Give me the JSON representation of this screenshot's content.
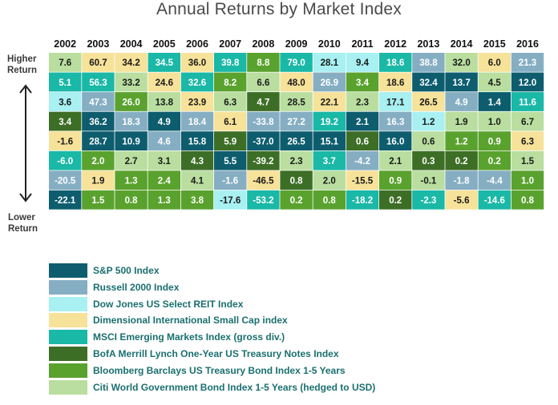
{
  "title": "Annual Returns by Market Index",
  "side_labels": {
    "high": [
      "Higher",
      "Return"
    ],
    "low": [
      "Lower",
      "Return"
    ]
  },
  "indices": [
    {
      "code": "SP",
      "name": "S&P 500 Index",
      "color": "#0d5d6e",
      "text": "#ffffff"
    },
    {
      "code": "RU",
      "name": "Russell 2000 Index",
      "color": "#86aec3",
      "text": "#ffffff"
    },
    {
      "code": "DJ",
      "name": "Dow Jones US Select REIT Index",
      "color": "#a8f0f2",
      "text": "#1a1a1a"
    },
    {
      "code": "DI",
      "name": "Dimensional International Small Cap index",
      "color": "#f7e29a",
      "text": "#1a1a1a"
    },
    {
      "code": "MS",
      "name": "MSCI Emerging Markets Index (gross div.)",
      "color": "#1ab8a6",
      "text": "#ffffff"
    },
    {
      "code": "BM",
      "name": "BofA Merrill Lynch One-Year US Treasury Notes Index",
      "color": "#3d6e26",
      "text": "#ffffff"
    },
    {
      "code": "BB",
      "name": "Bloomberg Barclays US Treasury Bond Index 1-5 Years",
      "color": "#5aa22e",
      "text": "#ffffff"
    },
    {
      "code": "CW",
      "name": "Citi World Government Bond Index 1-5 Years (hedged to USD)",
      "color": "#b9dea0",
      "text": "#1a1a1a"
    }
  ],
  "chart_data": {
    "type": "table",
    "title": "Annual Returns by Market Index",
    "years": [
      "2002",
      "2003",
      "2004",
      "2005",
      "2006",
      "2007",
      "2008",
      "2009",
      "2010",
      "2011",
      "2012",
      "2013",
      "2014",
      "2015",
      "2016"
    ],
    "columns": [
      [
        [
          "CW",
          "7.6"
        ],
        [
          "MS",
          "5.1"
        ],
        [
          "DJ",
          "3.6"
        ],
        [
          "BM",
          "3.4"
        ],
        [
          "DI",
          "-1.6"
        ],
        [
          "MS",
          "-6.0"
        ],
        [
          "RU",
          "-20.5"
        ],
        [
          "SP",
          "-22.1"
        ]
      ],
      [
        [
          "DI",
          "60.7"
        ],
        [
          "MS",
          "56.3"
        ],
        [
          "RU",
          "47.3"
        ],
        [
          "SP",
          "36.2"
        ],
        [
          "SP",
          "28.7"
        ],
        [
          "BB",
          "2.0"
        ],
        [
          "DI",
          "1.9"
        ],
        [
          "BB",
          "1.5"
        ]
      ],
      [
        [
          "DI",
          "34.2"
        ],
        [
          "CW",
          "33.2"
        ],
        [
          "BB",
          "26.0"
        ],
        [
          "RU",
          "18.3"
        ],
        [
          "SP",
          "10.9"
        ],
        [
          "CW",
          "2.7"
        ],
        [
          "BB",
          "1.3"
        ],
        [
          "BB",
          "0.8"
        ]
      ],
      [
        [
          "MS",
          "34.5"
        ],
        [
          "DI",
          "24.6"
        ],
        [
          "CW",
          "13.8"
        ],
        [
          "SP",
          "4.9"
        ],
        [
          "RU",
          "4.6"
        ],
        [
          "CW",
          "3.1"
        ],
        [
          "BB",
          "2.4"
        ],
        [
          "BB",
          "1.3"
        ]
      ],
      [
        [
          "DI",
          "36.0"
        ],
        [
          "MS",
          "32.6"
        ],
        [
          "DI",
          "23.9"
        ],
        [
          "RU",
          "18.4"
        ],
        [
          "SP",
          "15.8"
        ],
        [
          "BM",
          "4.3"
        ],
        [
          "CW",
          "4.1"
        ],
        [
          "BB",
          "3.8"
        ]
      ],
      [
        [
          "MS",
          "39.8"
        ],
        [
          "BB",
          "8.2"
        ],
        [
          "CW",
          "6.3"
        ],
        [
          "DI",
          "6.1"
        ],
        [
          "BM",
          "5.9"
        ],
        [
          "SP",
          "5.5"
        ],
        [
          "RU",
          "-1.6"
        ],
        [
          "DJ",
          "-17.6"
        ]
      ],
      [
        [
          "BB",
          "8.8"
        ],
        [
          "CW",
          "6.6"
        ],
        [
          "BM",
          "4.7"
        ],
        [
          "RU",
          "-33.8"
        ],
        [
          "SP",
          "-37.0"
        ],
        [
          "BM",
          "-39.2"
        ],
        [
          "DI",
          "-46.5"
        ],
        [
          "MS",
          "-53.2"
        ]
      ],
      [
        [
          "MS",
          "79.0"
        ],
        [
          "DI",
          "48.0"
        ],
        [
          "CW",
          "28.5"
        ],
        [
          "RU",
          "27.2"
        ],
        [
          "SP",
          "26.5"
        ],
        [
          "CW",
          "2.3"
        ],
        [
          "BM",
          "0.8"
        ],
        [
          "BB",
          "0.2"
        ]
      ],
      [
        [
          "DJ",
          "28.1"
        ],
        [
          "RU",
          "26.9"
        ],
        [
          "DI",
          "22.1"
        ],
        [
          "MS",
          "19.2"
        ],
        [
          "SP",
          "15.1"
        ],
        [
          "MS",
          "3.7"
        ],
        [
          "CW",
          "2.0"
        ],
        [
          "BB",
          "0.8"
        ]
      ],
      [
        [
          "DJ",
          "9.4"
        ],
        [
          "BB",
          "3.4"
        ],
        [
          "CW",
          "2.3"
        ],
        [
          "SP",
          "2.1"
        ],
        [
          "BM",
          "0.6"
        ],
        [
          "RU",
          "-4.2"
        ],
        [
          "DI",
          "-15.5"
        ],
        [
          "MS",
          "-18.2"
        ]
      ],
      [
        [
          "MS",
          "18.6"
        ],
        [
          "DI",
          "18.6"
        ],
        [
          "DJ",
          "17.1"
        ],
        [
          "RU",
          "16.3"
        ],
        [
          "SP",
          "16.0"
        ],
        [
          "CW",
          "2.1"
        ],
        [
          "BB",
          "0.9"
        ],
        [
          "BM",
          "0.2"
        ]
      ],
      [
        [
          "RU",
          "38.8"
        ],
        [
          "SP",
          "32.4"
        ],
        [
          "DI",
          "26.5"
        ],
        [
          "DJ",
          "1.2"
        ],
        [
          "CW",
          "0.6"
        ],
        [
          "BM",
          "0.3"
        ],
        [
          "CW",
          "-0.1"
        ],
        [
          "MS",
          "-2.3"
        ]
      ],
      [
        [
          "CW",
          "32.0"
        ],
        [
          "SP",
          "13.7"
        ],
        [
          "RU",
          "4.9"
        ],
        [
          "CW",
          "1.9"
        ],
        [
          "BB",
          "1.2"
        ],
        [
          "BM",
          "0.2"
        ],
        [
          "RU",
          "-1.8"
        ],
        [
          "DI",
          "-5.6"
        ]
      ],
      [
        [
          "DI",
          "6.0"
        ],
        [
          "CW",
          "4.5"
        ],
        [
          "SP",
          "1.4"
        ],
        [
          "CW",
          "1.0"
        ],
        [
          "BB",
          "0.9"
        ],
        [
          "BB",
          "0.2"
        ],
        [
          "RU",
          "-4.4"
        ],
        [
          "MS",
          "-14.6"
        ]
      ],
      [
        [
          "RU",
          "21.3"
        ],
        [
          "SP",
          "12.0"
        ],
        [
          "MS",
          "11.6"
        ],
        [
          "CW",
          "6.7"
        ],
        [
          "DI",
          "6.3"
        ],
        [
          "CW",
          "1.5"
        ],
        [
          "BB",
          "1.0"
        ],
        [
          "BB",
          "0.8"
        ]
      ]
    ]
  }
}
